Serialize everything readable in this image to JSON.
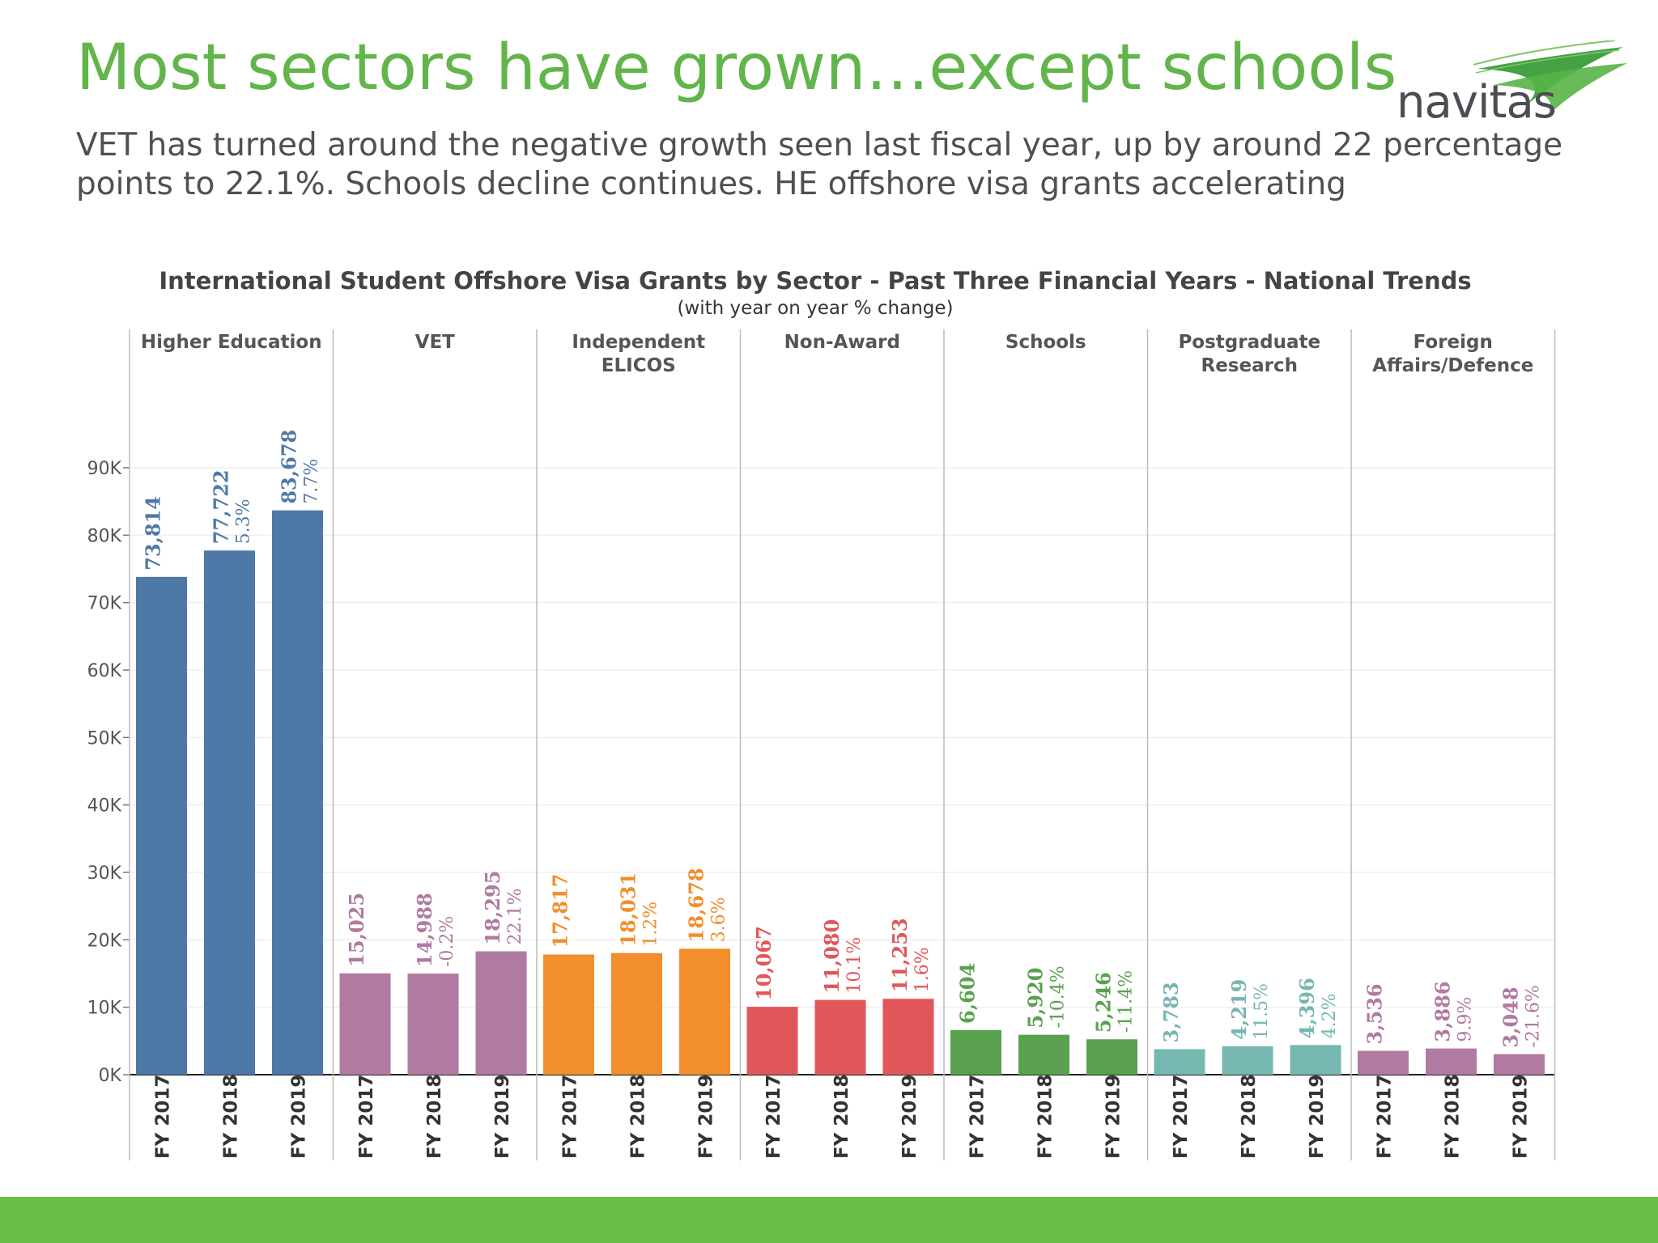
{
  "slide": {
    "title": "Most sectors have grown…except schools",
    "subtitle": "VET has turned around the negative growth seen last fiscal year, up by around 22 percentage points to 22.1%. Schools decline continues. HE offshore visa grants accelerating",
    "logo_text": "navitas",
    "colors": {
      "title": "#62b54a",
      "subtitle": "#505050",
      "bottom_bar": "#6abd45",
      "logo_swoosh": "#3a9d3a"
    }
  },
  "chart_data": {
    "type": "bar",
    "title": "International Student Offshore Visa Grants by Sector - Past Three Financial Years - National Trends",
    "subtitle": "(with year on year % change)",
    "ylim": [
      0,
      96000
    ],
    "yticks": [
      0,
      10000,
      20000,
      30000,
      40000,
      50000,
      60000,
      70000,
      80000,
      90000
    ],
    "ytick_labels": [
      "0K",
      "10K",
      "20K",
      "30K",
      "40K",
      "50K",
      "60K",
      "70K",
      "80K",
      "90K"
    ],
    "grid": true,
    "categories": [
      "FY 2017",
      "FY 2018",
      "FY 2019"
    ],
    "panels": [
      {
        "name": "Higher Education",
        "color": "#4e79a7",
        "values": [
          73814,
          77722,
          83678
        ],
        "value_labels": [
          "73,814",
          "77,722",
          "83,678"
        ],
        "pct_labels": [
          "",
          "5.3%",
          "7.7%"
        ]
      },
      {
        "name": "VET",
        "color": "#b07aa1",
        "values": [
          15025,
          14988,
          18295
        ],
        "value_labels": [
          "15,025",
          "14,988",
          "18,295"
        ],
        "pct_labels": [
          "",
          "-0.2%",
          "22.1%"
        ]
      },
      {
        "name": "Independent ELICOS",
        "color": "#f28e2b",
        "values": [
          17817,
          18031,
          18678
        ],
        "value_labels": [
          "17,817",
          "18,031",
          "18,678"
        ],
        "pct_labels": [
          "",
          "1.2%",
          "3.6%"
        ]
      },
      {
        "name": "Non-Award",
        "color": "#e15759",
        "values": [
          10067,
          11080,
          11253
        ],
        "value_labels": [
          "10,067",
          "11,080",
          "11,253"
        ],
        "pct_labels": [
          "",
          "10.1%",
          "1.6%"
        ]
      },
      {
        "name": "Schools",
        "color": "#59a14f",
        "values": [
          6604,
          5920,
          5246
        ],
        "value_labels": [
          "6,604",
          "5,920",
          "5,246"
        ],
        "pct_labels": [
          "",
          "-10.4%",
          "-11.4%"
        ]
      },
      {
        "name": "Postgraduate Research",
        "color": "#76b7b2",
        "values": [
          3783,
          4219,
          4396
        ],
        "value_labels": [
          "3,783",
          "4,219",
          "4,396"
        ],
        "pct_labels": [
          "",
          "11.5%",
          "4.2%"
        ]
      },
      {
        "name": "Foreign Affairs/Defence",
        "color": "#b07aa1",
        "values": [
          3536,
          3886,
          3048
        ],
        "value_labels": [
          "3,536",
          "3,886",
          "3,048"
        ],
        "pct_labels": [
          "",
          "9.9%",
          "-21.6%"
        ]
      }
    ]
  }
}
